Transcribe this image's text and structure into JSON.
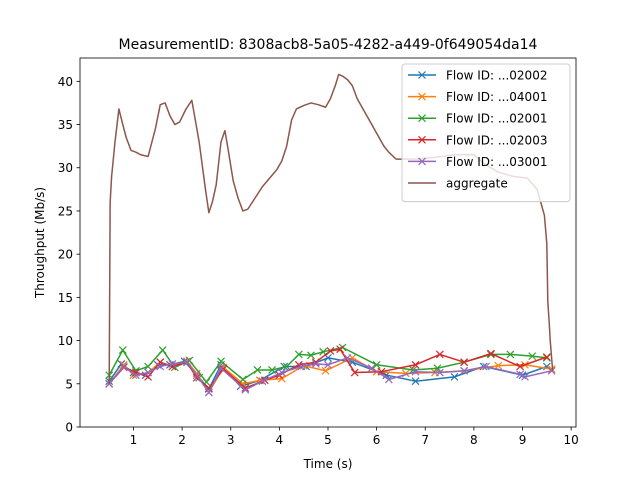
{
  "chart_data": {
    "type": "line",
    "title": "MeasurementID: 8308acb8-5a05-4282-a449-0f649054da14",
    "xlabel": "Time (s)",
    "ylabel": "Throughput (Mb/s)",
    "xlim": [
      -0.1,
      10.1
    ],
    "ylim": [
      0,
      42.7
    ],
    "xticks": [
      1,
      2,
      3,
      4,
      5,
      6,
      7,
      8,
      9,
      10
    ],
    "yticks": [
      0,
      5,
      10,
      15,
      20,
      25,
      30,
      35,
      40
    ],
    "grid": false,
    "legend_position": "top-right",
    "series": [
      {
        "name": "Flow ID: ...02002",
        "color": "#1f77b4",
        "marker": "x",
        "x": [
          0.5,
          0.75,
          1.0,
          1.25,
          1.5,
          1.75,
          2.05,
          2.35,
          2.55,
          2.8,
          3.2,
          3.6,
          4.1,
          4.55,
          5.0,
          5.5,
          6.2,
          6.8,
          7.6,
          8.2,
          9.0,
          9.5
        ],
        "y": [
          5.3,
          7.3,
          6.3,
          6.0,
          7.2,
          7.2,
          7.6,
          5.7,
          4.4,
          7.2,
          4.7,
          5.4,
          7.0,
          7.0,
          8.0,
          7.5,
          6.0,
          5.3,
          5.8,
          7.0,
          6.0,
          7.0
        ]
      },
      {
        "name": "Flow ID: ...04001",
        "color": "#ff7f0e",
        "marker": "x",
        "x": [
          0.5,
          0.8,
          1.0,
          1.3,
          1.55,
          1.8,
          2.1,
          2.3,
          2.55,
          2.85,
          3.25,
          3.6,
          4.05,
          4.5,
          4.95,
          5.5,
          6.0,
          6.6,
          7.2,
          7.8,
          8.5,
          9.05,
          9.6
        ],
        "y": [
          5.0,
          7.2,
          6.0,
          6.3,
          7.5,
          7.0,
          7.6,
          6.2,
          4.0,
          6.9,
          5.0,
          5.4,
          5.6,
          7.1,
          6.5,
          8.0,
          6.4,
          6.2,
          6.3,
          6.5,
          7.1,
          7.2,
          6.7
        ]
      },
      {
        "name": "Flow ID: ...02001",
        "color": "#2ca02c",
        "marker": "x",
        "x": [
          0.5,
          0.78,
          1.05,
          1.3,
          1.6,
          1.85,
          2.15,
          2.5,
          2.8,
          3.25,
          3.55,
          3.85,
          4.15,
          4.4,
          4.65,
          4.9,
          5.3,
          6.0,
          6.75,
          7.25,
          7.8,
          8.35,
          8.75,
          9.2,
          9.5
        ],
        "y": [
          6.0,
          8.9,
          6.5,
          7.0,
          8.9,
          6.9,
          7.7,
          5.2,
          7.6,
          5.5,
          6.6,
          6.6,
          7.0,
          8.4,
          8.3,
          8.7,
          9.2,
          7.2,
          6.6,
          6.8,
          7.5,
          8.4,
          8.4,
          8.2,
          8.0
        ]
      },
      {
        "name": "Flow ID: ...02003",
        "color": "#d62728",
        "marker": "x",
        "x": [
          0.5,
          0.8,
          1.05,
          1.3,
          1.55,
          1.8,
          2.1,
          2.3,
          2.55,
          2.85,
          3.3,
          3.7,
          4.0,
          4.4,
          4.75,
          5.05,
          5.25,
          5.55,
          6.1,
          6.8,
          7.3,
          7.8,
          8.35,
          8.95,
          9.5
        ],
        "y": [
          5.0,
          6.9,
          6.3,
          5.8,
          7.5,
          7.0,
          7.5,
          5.7,
          4.5,
          6.7,
          4.5,
          5.4,
          6.0,
          7.2,
          7.5,
          8.8,
          9.0,
          6.3,
          6.4,
          7.2,
          8.4,
          7.5,
          8.5,
          7.0,
          8.1
        ]
      },
      {
        "name": "Flow ID: ...03001",
        "color": "#9467bd",
        "marker": "x",
        "x": [
          0.5,
          0.8,
          1.05,
          1.3,
          1.55,
          1.8,
          2.1,
          2.3,
          2.55,
          2.8,
          3.3,
          3.65,
          4.05,
          4.45,
          4.75,
          5.0,
          5.4,
          5.9,
          6.25,
          6.8,
          7.3,
          7.8,
          8.25,
          8.95,
          9.05,
          9.6
        ],
        "y": [
          5.0,
          7.0,
          6.0,
          6.3,
          7.0,
          7.3,
          7.5,
          6.0,
          4.0,
          6.8,
          4.3,
          5.3,
          6.3,
          7.0,
          7.3,
          7.2,
          8.0,
          6.8,
          5.5,
          6.4,
          6.3,
          6.5,
          7.0,
          6.1,
          5.8,
          6.5
        ]
      },
      {
        "name": "aggregate",
        "color": "#8c564b",
        "marker": "none",
        "x": [
          0.5,
          0.52,
          0.55,
          0.62,
          0.7,
          0.78,
          0.85,
          0.95,
          1.05,
          1.15,
          1.3,
          1.45,
          1.55,
          1.65,
          1.75,
          1.85,
          1.95,
          2.08,
          2.2,
          2.35,
          2.48,
          2.55,
          2.62,
          2.7,
          2.8,
          2.88,
          2.95,
          3.05,
          3.15,
          3.25,
          3.35,
          3.5,
          3.65,
          3.8,
          3.95,
          4.05,
          4.15,
          4.25,
          4.35,
          4.5,
          4.65,
          4.8,
          4.95,
          5.05,
          5.15,
          5.22,
          5.3,
          5.4,
          5.5,
          5.6,
          5.75,
          5.9,
          6.05,
          6.15,
          6.25,
          6.4,
          6.8,
          7.2,
          7.6,
          8.0,
          8.2,
          8.5,
          8.8,
          9.1,
          9.3,
          9.45,
          9.5,
          9.52,
          9.55,
          9.57,
          9.62
        ],
        "y": [
          5.0,
          26.0,
          29.0,
          33.0,
          36.8,
          35.0,
          33.5,
          32.0,
          31.8,
          31.5,
          31.3,
          34.5,
          37.3,
          37.5,
          36.0,
          35.0,
          35.3,
          36.8,
          37.8,
          33.0,
          27.5,
          24.8,
          26.0,
          28.0,
          33.0,
          34.3,
          32.0,
          28.5,
          26.5,
          25.0,
          25.2,
          26.5,
          27.8,
          28.8,
          29.8,
          30.8,
          32.5,
          35.5,
          36.8,
          37.2,
          37.5,
          37.3,
          37.0,
          38.0,
          39.5,
          40.8,
          40.6,
          40.2,
          39.5,
          38.0,
          36.5,
          35.0,
          33.5,
          32.5,
          31.8,
          31.0,
          31.0,
          31.2,
          31.5,
          31.5,
          30.5,
          29.5,
          29.0,
          28.8,
          27.5,
          24.5,
          21.2,
          14.5,
          12.0,
          10.0,
          6.5
        ]
      }
    ]
  }
}
